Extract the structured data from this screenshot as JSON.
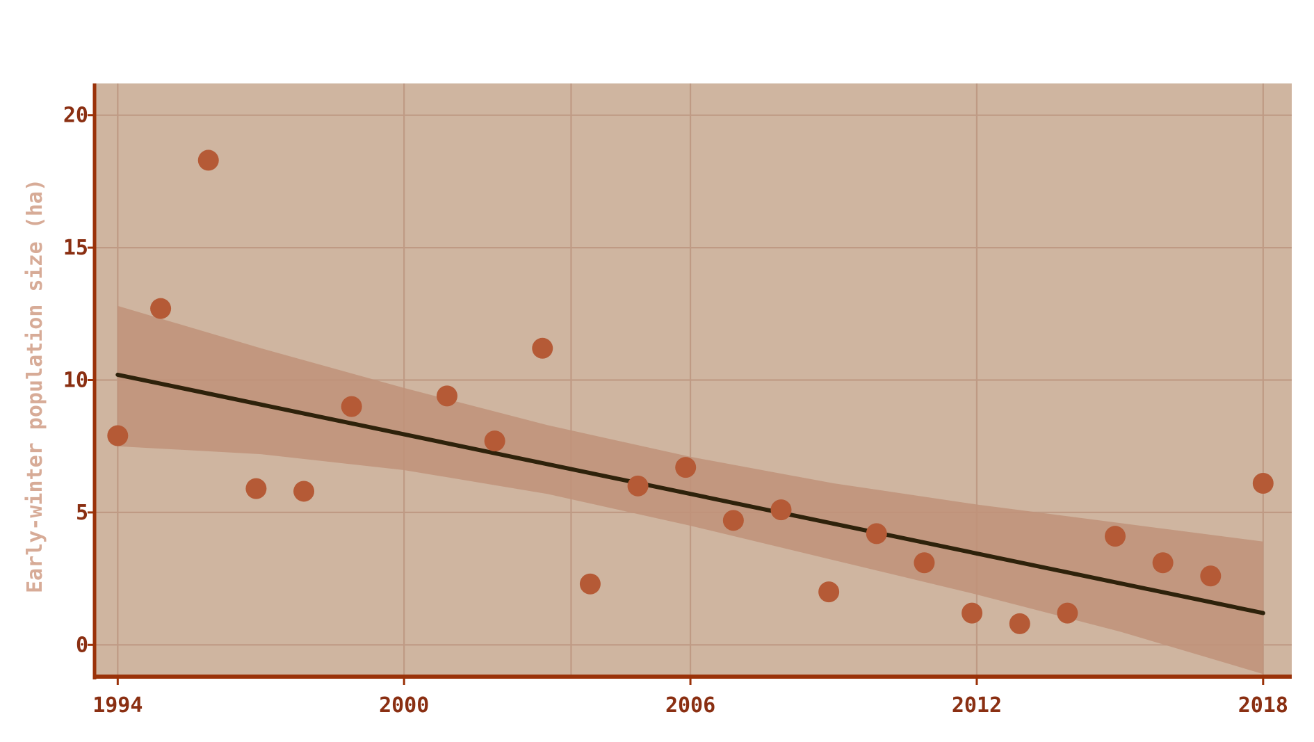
{
  "chart_data": {
    "type": "scatter",
    "title": "",
    "xlabel": "",
    "ylabel": "Early-winter population size (ha)",
    "xlim": [
      1993.5,
      2018.6
    ],
    "ylim": [
      -1.2,
      21.2
    ],
    "x_ticks": [
      1994,
      2000,
      2006,
      2012,
      2018
    ],
    "x_tick_labels": [
      "1994",
      "2000",
      "2006",
      "2012",
      "2018"
    ],
    "y_ticks": [
      0,
      5,
      10,
      15,
      20
    ],
    "y_tick_labels": [
      "0",
      "5",
      "10",
      "15",
      "20"
    ],
    "x_minor_grid": [
      2003.5
    ],
    "grid": true,
    "legend": "none",
    "series": [
      {
        "kind": "points",
        "x": [
          1994.0,
          1994.9,
          1995.9,
          1996.9,
          1997.9,
          1998.9,
          2000.9,
          2001.9,
          2002.9,
          2003.9,
          2004.9,
          2005.9,
          2006.9,
          2007.9,
          2008.9,
          2009.9,
          2010.9,
          2011.9,
          2012.9,
          2013.9,
          2014.9,
          2015.9,
          2016.9,
          2018.0
        ],
        "y": [
          7.9,
          12.7,
          18.3,
          5.9,
          5.8,
          9.0,
          9.4,
          7.7,
          11.2,
          2.3,
          6.0,
          6.7,
          4.7,
          5.1,
          2.0,
          4.2,
          3.1,
          1.2,
          0.8,
          1.2,
          4.1,
          3.1,
          2.6,
          6.1
        ]
      },
      {
        "kind": "trend",
        "x": [
          1994,
          2018
        ],
        "y": [
          10.2,
          1.2
        ]
      },
      {
        "kind": "confidence_band",
        "x": [
          1994,
          1997,
          2000,
          2003,
          2006,
          2009,
          2012,
          2015,
          2018
        ],
        "upper": [
          12.8,
          11.2,
          9.7,
          8.3,
          7.1,
          6.1,
          5.3,
          4.6,
          3.9
        ],
        "lower": [
          7.5,
          7.2,
          6.6,
          5.7,
          4.5,
          3.2,
          1.9,
          0.5,
          -1.1
        ]
      }
    ],
    "colors": {
      "plot_background": "#cfb5a0",
      "grid": "#bf9a84",
      "axis": "#9a3209",
      "tick_label": "#8a2f12",
      "axis_title": "#d7ab97",
      "point": "#b55a36",
      "band": "#bf9279",
      "trend": "#2e220b"
    }
  }
}
